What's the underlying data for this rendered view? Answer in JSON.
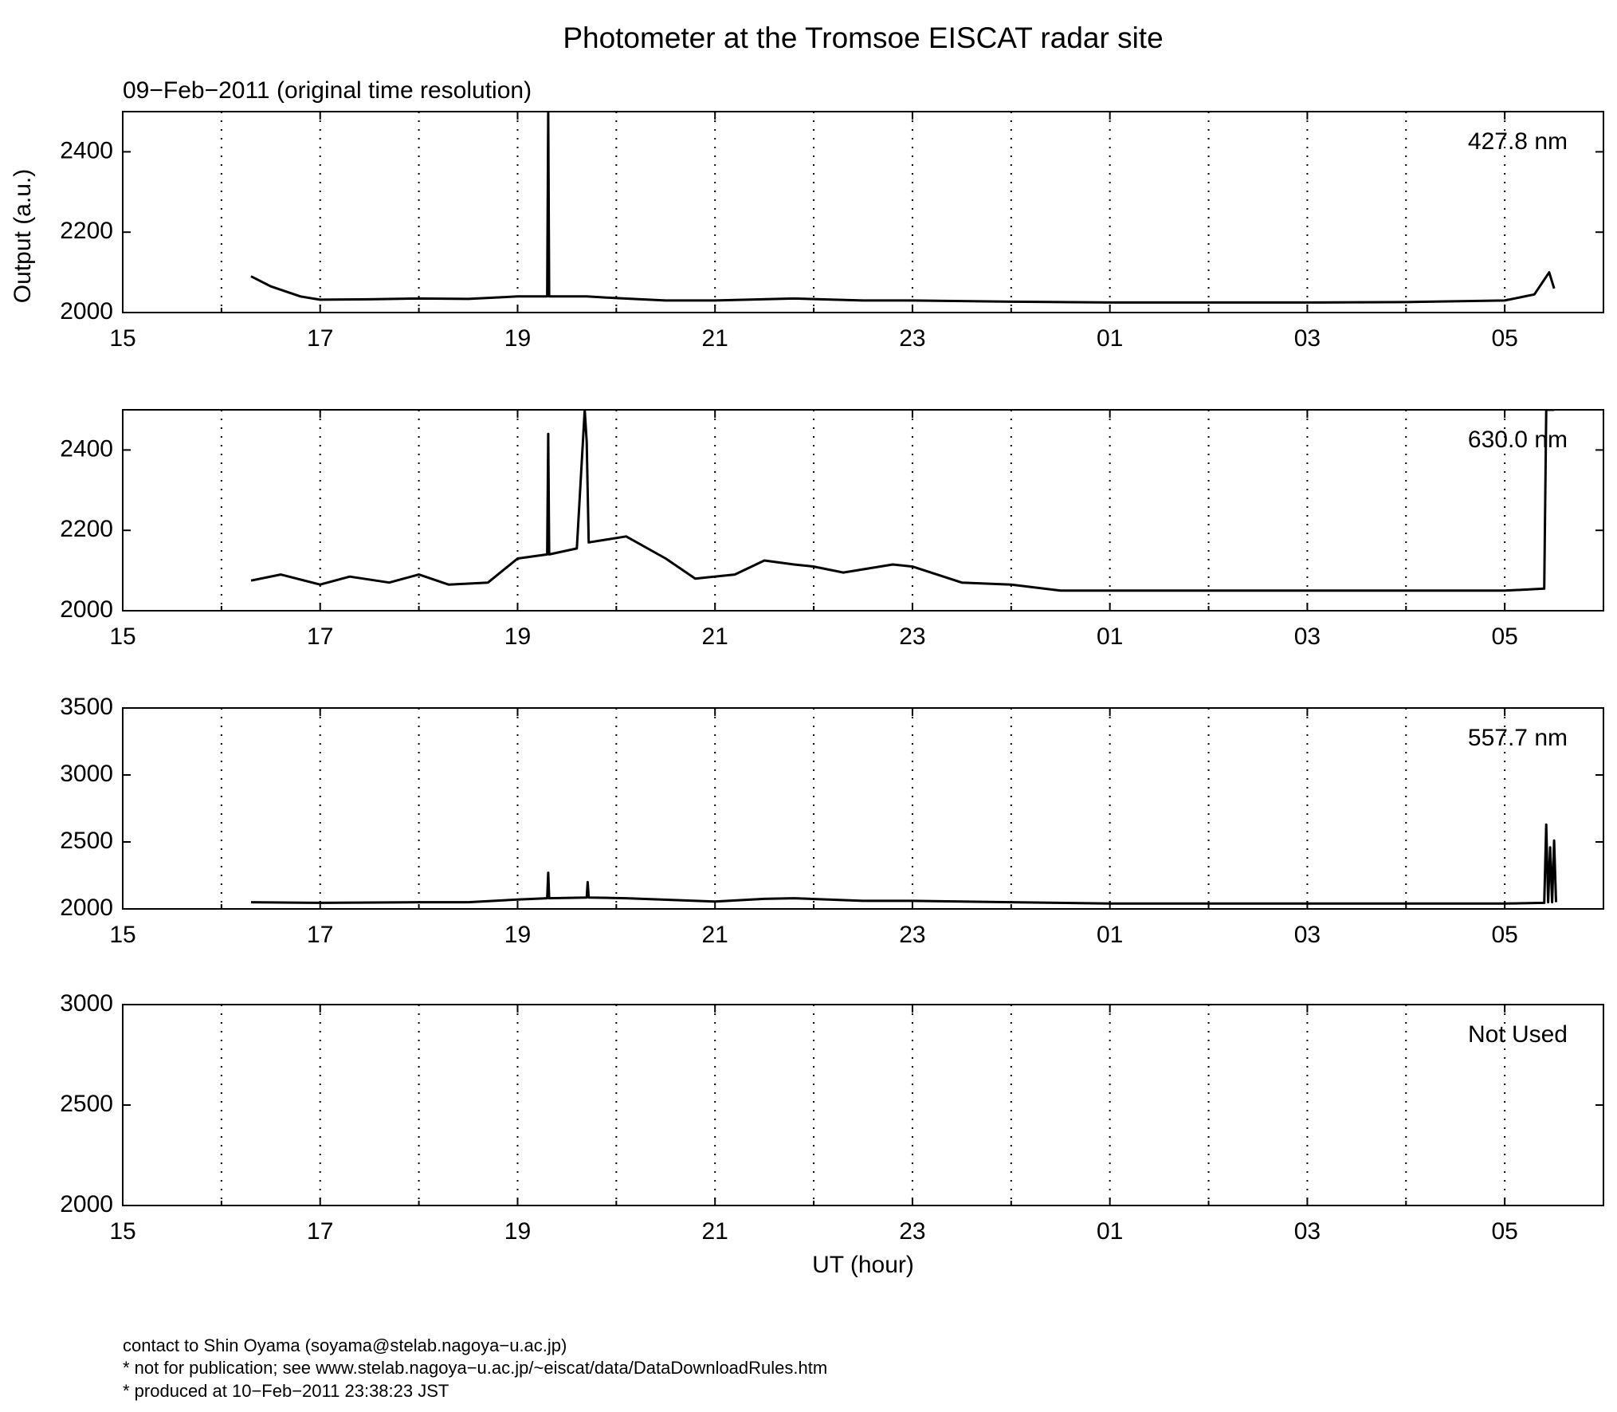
{
  "title": "Photometer at the Tromsoe EISCAT radar site",
  "subtitle": "09−Feb−2011 (original time resolution)",
  "footer": [
    "contact to Shin Oyama (soyama@stelab.nagoya−u.ac.jp)",
    "* not for publication; see www.stelab.nagoya−u.ac.jp/~eiscat/data/DataDownloadRules.htm",
    "* produced at 10−Feb−2011 23:38:23 JST"
  ],
  "chart_data": [
    {
      "type": "line",
      "label": "427.8 nm",
      "ylabel": "Output (a.u.)",
      "grid": true,
      "xlim": [
        15,
        30
      ],
      "ylim": [
        2000,
        2500
      ],
      "yticks": [
        2000,
        2200,
        2400
      ],
      "xticks": [
        15,
        17,
        19,
        21,
        23,
        {
          "value": 25,
          "label": "01"
        },
        {
          "value": 27,
          "label": "03"
        },
        {
          "value": 29,
          "label": "05"
        }
      ],
      "xminor": [
        16,
        18,
        20,
        22,
        24,
        26,
        28
      ],
      "x": [
        16.3,
        16.5,
        16.8,
        17,
        17.5,
        18,
        18.5,
        19,
        19.3,
        19.31,
        19.32,
        19.7,
        20,
        20.5,
        21,
        21.8,
        22.5,
        23,
        24,
        25,
        26,
        27,
        28,
        29,
        29.3,
        29.45,
        29.5
      ],
      "series": [
        {
          "color": "#000000",
          "values": [
            2090,
            2065,
            2040,
            2032,
            2033,
            2035,
            2034,
            2040,
            2040,
            2500,
            2040,
            2040,
            2036,
            2030,
            2030,
            2035,
            2030,
            2030,
            2027,
            2025,
            2025,
            2025,
            2026,
            2030,
            2045,
            2100,
            2060
          ]
        }
      ]
    },
    {
      "type": "line",
      "label": "630.0 nm",
      "grid": true,
      "xlim": [
        15,
        30
      ],
      "ylim": [
        2000,
        2500
      ],
      "yticks": [
        2000,
        2200,
        2400
      ],
      "xticks": [
        15,
        17,
        19,
        21,
        23,
        {
          "value": 25,
          "label": "01"
        },
        {
          "value": 27,
          "label": "03"
        },
        {
          "value": 29,
          "label": "05"
        }
      ],
      "xminor": [
        16,
        18,
        20,
        22,
        24,
        26,
        28
      ],
      "x": [
        16.3,
        16.6,
        17,
        17.3,
        17.7,
        18,
        18.3,
        18.7,
        19,
        19.3,
        19.31,
        19.32,
        19.6,
        19.68,
        19.7,
        19.72,
        20.1,
        20.5,
        20.8,
        21.2,
        21.5,
        21.8,
        22,
        22.3,
        22.8,
        23,
        23.5,
        24,
        24.5,
        25,
        26,
        27,
        28,
        29,
        29.4,
        29.42,
        29.5
      ],
      "series": [
        {
          "color": "#000000",
          "values": [
            2075,
            2090,
            2065,
            2085,
            2070,
            2090,
            2065,
            2070,
            2130,
            2140,
            2440,
            2140,
            2155,
            2500,
            2420,
            2170,
            2185,
            2130,
            2080,
            2090,
            2125,
            2115,
            2110,
            2095,
            2115,
            2110,
            2070,
            2065,
            2050,
            2050,
            2050,
            2050,
            2050,
            2050,
            2055,
            2500,
            2500
          ]
        }
      ]
    },
    {
      "type": "line",
      "label": "557.7 nm",
      "grid": true,
      "xlim": [
        15,
        30
      ],
      "ylim": [
        2000,
        3500
      ],
      "yticks": [
        2000,
        2500,
        3000,
        3500
      ],
      "xticks": [
        15,
        17,
        19,
        21,
        23,
        {
          "value": 25,
          "label": "01"
        },
        {
          "value": 27,
          "label": "03"
        },
        {
          "value": 29,
          "label": "05"
        }
      ],
      "xminor": [
        16,
        18,
        20,
        22,
        24,
        26,
        28
      ],
      "x": [
        16.3,
        17,
        18,
        18.5,
        19,
        19.3,
        19.31,
        19.32,
        19.7,
        19.71,
        19.72,
        20.1,
        21,
        21.5,
        21.8,
        22.5,
        23,
        24,
        25,
        27,
        29,
        29.4,
        29.42,
        29.44,
        29.46,
        29.48,
        29.5,
        29.52
      ],
      "series": [
        {
          "color": "#000000",
          "values": [
            2050,
            2045,
            2050,
            2050,
            2070,
            2080,
            2270,
            2080,
            2085,
            2200,
            2085,
            2080,
            2055,
            2075,
            2080,
            2060,
            2060,
            2050,
            2040,
            2040,
            2040,
            2045,
            2630,
            2050,
            2460,
            2050,
            2510,
            2050
          ]
        }
      ]
    },
    {
      "type": "line",
      "label": "Not Used",
      "xlabel": "UT (hour)",
      "grid": true,
      "xlim": [
        15,
        30
      ],
      "ylim": [
        2000,
        3000
      ],
      "yticks": [
        2000,
        2500,
        3000
      ],
      "xticks": [
        15,
        17,
        19,
        21,
        23,
        {
          "value": 25,
          "label": "01"
        },
        {
          "value": 27,
          "label": "03"
        },
        {
          "value": 29,
          "label": "05"
        }
      ],
      "xminor": [
        16,
        18,
        20,
        22,
        24,
        26,
        28
      ]
    }
  ]
}
